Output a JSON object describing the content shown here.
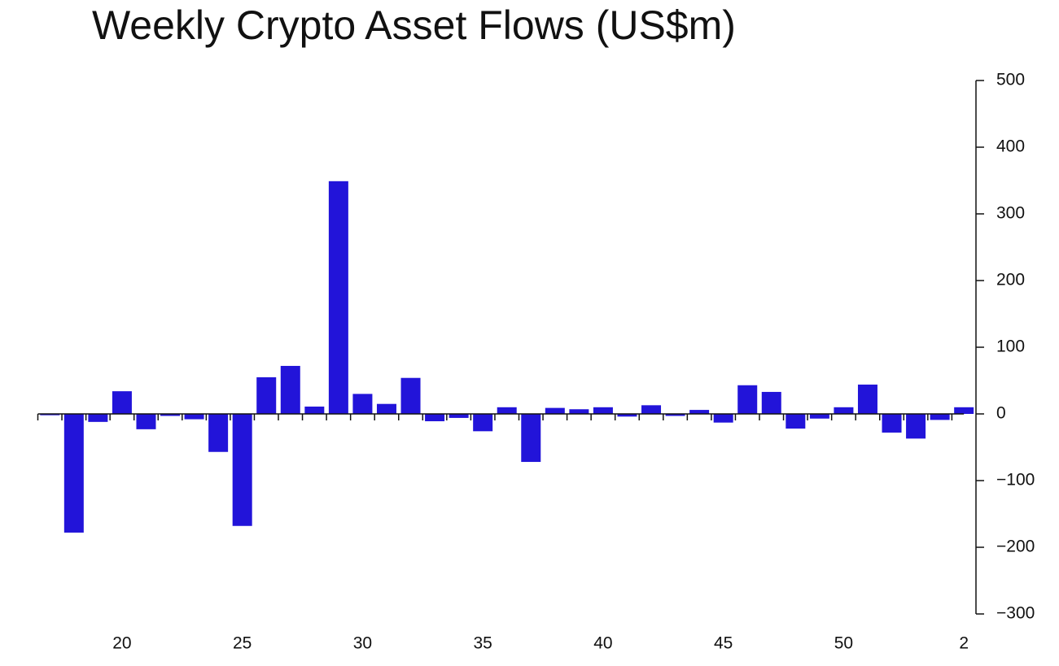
{
  "chart_data": {
    "type": "bar",
    "title": "Weekly Crypto Asset Flows (US$m)",
    "categories": [
      null,
      null,
      null,
      "20",
      null,
      null,
      null,
      null,
      "25",
      null,
      null,
      null,
      null,
      "30",
      null,
      null,
      null,
      null,
      "35",
      null,
      null,
      null,
      null,
      "40",
      null,
      null,
      null,
      null,
      "45",
      null,
      null,
      null,
      null,
      "50",
      null,
      null,
      null,
      null,
      "2"
    ],
    "values": [
      -2,
      -178,
      -12,
      34,
      -23,
      -3,
      -8,
      -57,
      -168,
      55,
      72,
      11,
      349,
      30,
      15,
      54,
      -11,
      -6,
      -26,
      10,
      -72,
      9,
      7,
      10,
      -4,
      13,
      -3,
      6,
      -13,
      43,
      33,
      -22,
      -7,
      10,
      44,
      -28,
      -37,
      -9,
      10
    ],
    "color": "#2214d9",
    "ylim": [
      -300,
      500
    ],
    "yticks": [
      {
        "value": -300,
        "label": "−300"
      },
      {
        "value": -200,
        "label": "−200"
      },
      {
        "value": -100,
        "label": "−100"
      },
      0,
      100,
      200,
      300,
      400,
      500
    ],
    "y_axis_side": "right"
  }
}
